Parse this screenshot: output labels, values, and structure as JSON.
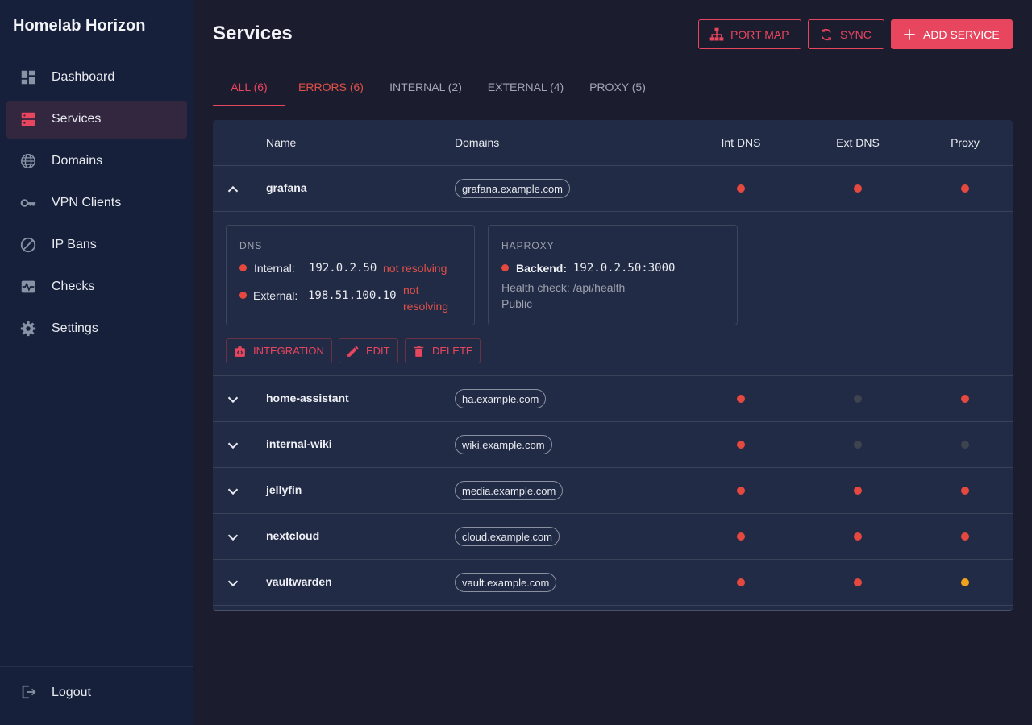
{
  "sidebar": {
    "brand": "Homelab Horizon",
    "nav": [
      {
        "label": "Dashboard",
        "icon": "dashboard"
      },
      {
        "label": "Services",
        "icon": "services",
        "active": true
      },
      {
        "label": "Domains",
        "icon": "globe"
      },
      {
        "label": "VPN Clients",
        "icon": "key"
      },
      {
        "label": "IP Bans",
        "icon": "ban"
      },
      {
        "label": "Checks",
        "icon": "pulse"
      },
      {
        "label": "Settings",
        "icon": "gear"
      }
    ],
    "logout": "Logout"
  },
  "header": {
    "title": "Services",
    "actions": [
      {
        "label": "PORT MAP",
        "icon": "sitemap",
        "style": "outline"
      },
      {
        "label": "SYNC",
        "icon": "sync",
        "style": "outline"
      },
      {
        "label": "ADD SERVICE",
        "icon": "plus",
        "style": "filled"
      }
    ]
  },
  "tabs": [
    {
      "label": "ALL (6)",
      "active": true
    },
    {
      "label": "ERRORS (6)",
      "tone": "error"
    },
    {
      "label": "INTERNAL (2)"
    },
    {
      "label": "EXTERNAL (4)"
    },
    {
      "label": "PROXY (5)"
    }
  ],
  "table": {
    "columns": [
      "Name",
      "Domains",
      "Int DNS",
      "Ext DNS",
      "Proxy"
    ],
    "rows": [
      {
        "name": "grafana",
        "domain": "grafana.example.com",
        "int_dns": "error",
        "ext_dns": "error",
        "proxy": "error",
        "expanded": true
      },
      {
        "name": "home-assistant",
        "domain": "ha.example.com",
        "int_dns": "error",
        "ext_dns": "none",
        "proxy": "error"
      },
      {
        "name": "internal-wiki",
        "domain": "wiki.example.com",
        "int_dns": "error",
        "ext_dns": "none",
        "proxy": "none"
      },
      {
        "name": "jellyfin",
        "domain": "media.example.com",
        "int_dns": "error",
        "ext_dns": "error",
        "proxy": "error"
      },
      {
        "name": "nextcloud",
        "domain": "cloud.example.com",
        "int_dns": "error",
        "ext_dns": "error",
        "proxy": "error"
      },
      {
        "name": "vaultwarden",
        "domain": "vault.example.com",
        "int_dns": "error",
        "ext_dns": "error",
        "proxy": "warning"
      }
    ]
  },
  "details": {
    "dns": {
      "title": "DNS",
      "internal": {
        "label": "Internal:",
        "ip": "192.0.2.50",
        "status": "not resolving"
      },
      "external": {
        "label": "External:",
        "ip": "198.51.100.10",
        "status": "not resolving"
      }
    },
    "haproxy": {
      "title": "HAPROXY",
      "backend_label": "Backend:",
      "backend": "192.0.2.50:3000",
      "health": "Health check: /api/health",
      "visibility": "Public"
    },
    "actions": [
      {
        "label": "INTEGRATION",
        "icon": "integration"
      },
      {
        "label": "EDIT",
        "icon": "edit"
      },
      {
        "label": "DELETE",
        "icon": "trash"
      }
    ]
  }
}
